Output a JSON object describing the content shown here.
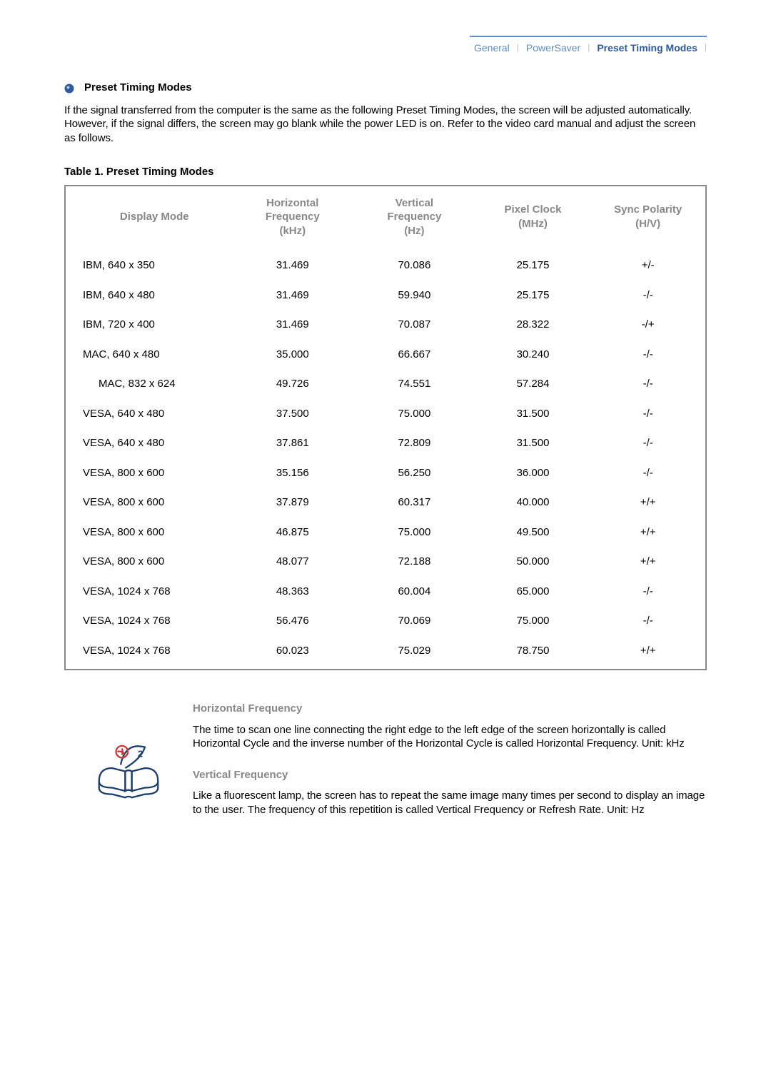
{
  "tabs": {
    "general": "General",
    "powersaver": "PowerSaver",
    "preset": "Preset Timing Modes"
  },
  "section": {
    "title": "Preset Timing Modes",
    "intro": "If the signal transferred from the computer is the same as the following Preset Timing Modes, the screen will be adjusted automatically. However, if the signal differs, the screen may go blank while the power LED is on. Refer to the video card manual and adjust the screen as follows."
  },
  "table": {
    "caption": "Table 1. Preset Timing Modes",
    "headers": {
      "mode": "Display Mode",
      "hfreq": "Horizontal\nFrequency\n(kHz)",
      "vfreq": "Vertical\nFrequency\n(Hz)",
      "clock": "Pixel Clock\n(MHz)",
      "sync": "Sync Polarity\n(H/V)"
    },
    "rows": [
      {
        "mode": "IBM, 640 x 350",
        "hfreq": "31.469",
        "vfreq": "70.086",
        "clock": "25.175",
        "sync": "+/-",
        "indent": false
      },
      {
        "mode": "IBM, 640 x 480",
        "hfreq": "31.469",
        "vfreq": "59.940",
        "clock": "25.175",
        "sync": "-/-",
        "indent": false
      },
      {
        "mode": "IBM, 720 x 400",
        "hfreq": "31.469",
        "vfreq": "70.087",
        "clock": "28.322",
        "sync": "-/+",
        "indent": false
      },
      {
        "mode": "MAC, 640 x 480",
        "hfreq": "35.000",
        "vfreq": "66.667",
        "clock": "30.240",
        "sync": "-/-",
        "indent": false
      },
      {
        "mode": "MAC, 832 x 624",
        "hfreq": "49.726",
        "vfreq": "74.551",
        "clock": "57.284",
        "sync": "-/-",
        "indent": true
      },
      {
        "mode": "VESA, 640 x 480",
        "hfreq": "37.500",
        "vfreq": "75.000",
        "clock": "31.500",
        "sync": "-/-",
        "indent": false
      },
      {
        "mode": "VESA, 640 x 480",
        "hfreq": "37.861",
        "vfreq": "72.809",
        "clock": "31.500",
        "sync": "-/-",
        "indent": false
      },
      {
        "mode": "VESA, 800 x 600",
        "hfreq": "35.156",
        "vfreq": "56.250",
        "clock": "36.000",
        "sync": "-/-",
        "indent": false
      },
      {
        "mode": "VESA, 800 x 600",
        "hfreq": "37.879",
        "vfreq": "60.317",
        "clock": "40.000",
        "sync": "+/+",
        "indent": false
      },
      {
        "mode": "VESA, 800 x 600",
        "hfreq": "46.875",
        "vfreq": "75.000",
        "clock": "49.500",
        "sync": "+/+",
        "indent": false
      },
      {
        "mode": "VESA, 800 x 600",
        "hfreq": "48.077",
        "vfreq": "72.188",
        "clock": "50.000",
        "sync": "+/+",
        "indent": false
      },
      {
        "mode": "VESA, 1024 x 768",
        "hfreq": "48.363",
        "vfreq": "60.004",
        "clock": "65.000",
        "sync": "-/-",
        "indent": false
      },
      {
        "mode": "VESA, 1024 x 768",
        "hfreq": "56.476",
        "vfreq": "70.069",
        "clock": "75.000",
        "sync": "-/-",
        "indent": false
      },
      {
        "mode": "VESA, 1024 x 768",
        "hfreq": "60.023",
        "vfreq": "75.029",
        "clock": "78.750",
        "sync": "+/+",
        "indent": false
      }
    ]
  },
  "explain": {
    "hfreq": {
      "title": "Horizontal Frequency",
      "body": "The time to scan one line connecting the right edge to the left edge of the screen horizontally is called Horizontal Cycle and the inverse number of the Horizontal Cycle is called Horizontal Frequency. Unit: kHz"
    },
    "vfreq": {
      "title": "Vertical Frequency",
      "body": "Like a fluorescent lamp, the screen has to repeat the same image many times per second to display an image to the user. The frequency of this repetition is called Vertical Frequency or Refresh Rate. Unit: Hz"
    }
  }
}
